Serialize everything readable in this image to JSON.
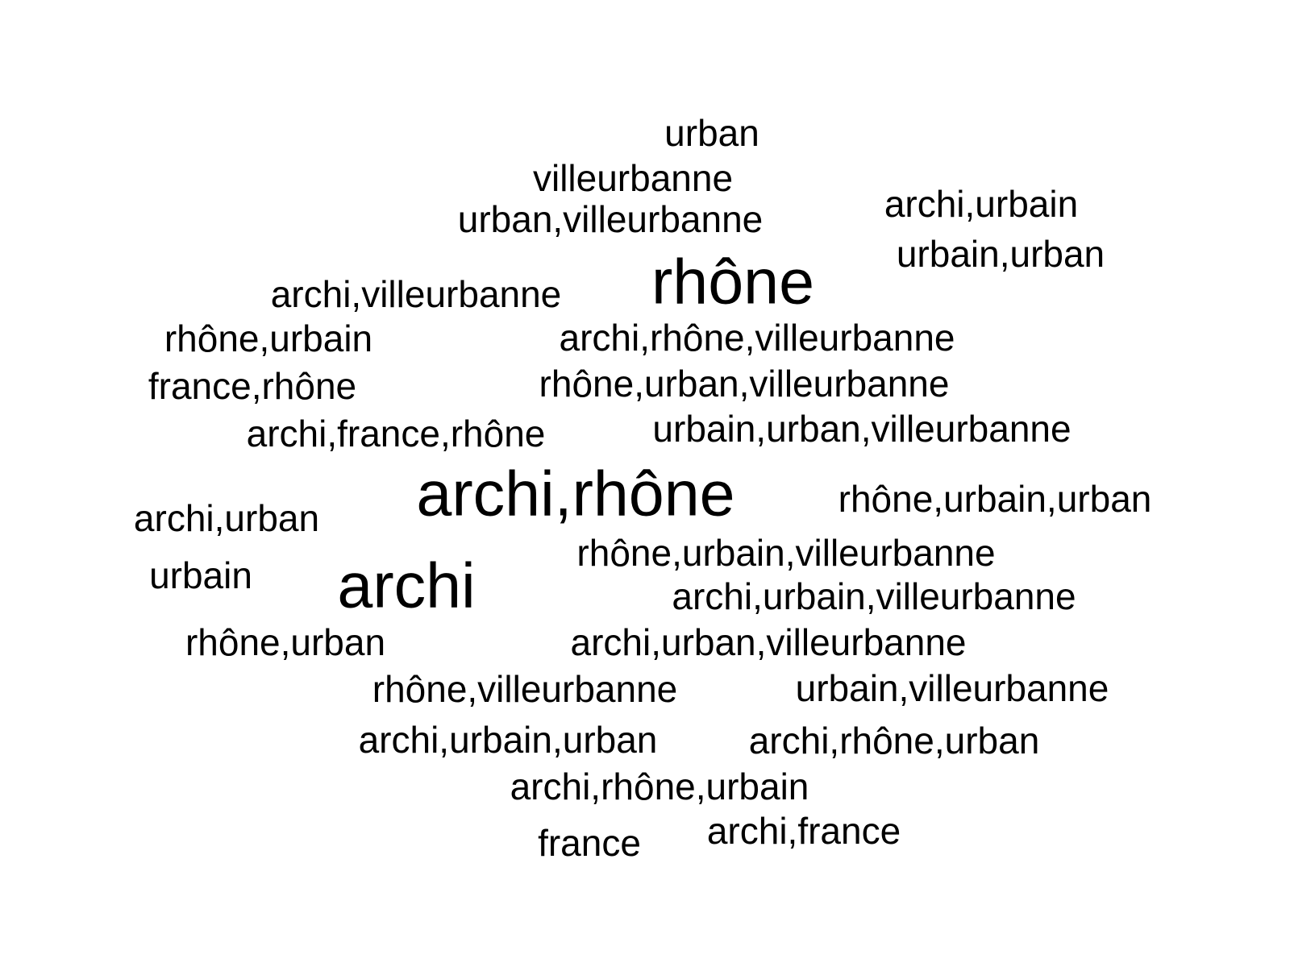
{
  "text_color": "#000000",
  "background_color": "#ffffff",
  "words": [
    {
      "text": "urban",
      "weight": 1
    },
    {
      "text": "villeurbanne",
      "weight": 1
    },
    {
      "text": "urban,villeurbanne",
      "weight": 1
    },
    {
      "text": "archi,urbain",
      "weight": 1
    },
    {
      "text": "urbain,urban",
      "weight": 1
    },
    {
      "text": "rhône",
      "weight": 3
    },
    {
      "text": "archi,villeurbanne",
      "weight": 1
    },
    {
      "text": "rhône,urbain",
      "weight": 1
    },
    {
      "text": "archi,rhône,villeurbanne",
      "weight": 1
    },
    {
      "text": "france,rhône",
      "weight": 1
    },
    {
      "text": "rhône,urban,villeurbanne",
      "weight": 1
    },
    {
      "text": "archi,france,rhône",
      "weight": 1
    },
    {
      "text": "urbain,urban,villeurbanne",
      "weight": 1
    },
    {
      "text": "archi,rhône",
      "weight": 3
    },
    {
      "text": "rhône,urbain,urban",
      "weight": 1
    },
    {
      "text": "archi,urban",
      "weight": 1
    },
    {
      "text": "rhône,urbain,villeurbanne",
      "weight": 1
    },
    {
      "text": "urbain",
      "weight": 1
    },
    {
      "text": "archi",
      "weight": 3
    },
    {
      "text": "archi,urbain,villeurbanne",
      "weight": 1
    },
    {
      "text": "rhône,urban",
      "weight": 1
    },
    {
      "text": "archi,urban,villeurbanne",
      "weight": 1
    },
    {
      "text": "rhône,villeurbanne",
      "weight": 1
    },
    {
      "text": "urbain,villeurbanne",
      "weight": 1
    },
    {
      "text": "archi,urbain,urban",
      "weight": 1
    },
    {
      "text": "archi,rhône,urban",
      "weight": 1
    },
    {
      "text": "archi,rhône,urbain",
      "weight": 1
    },
    {
      "text": "france",
      "weight": 1
    },
    {
      "text": "archi,france",
      "weight": 1
    }
  ]
}
